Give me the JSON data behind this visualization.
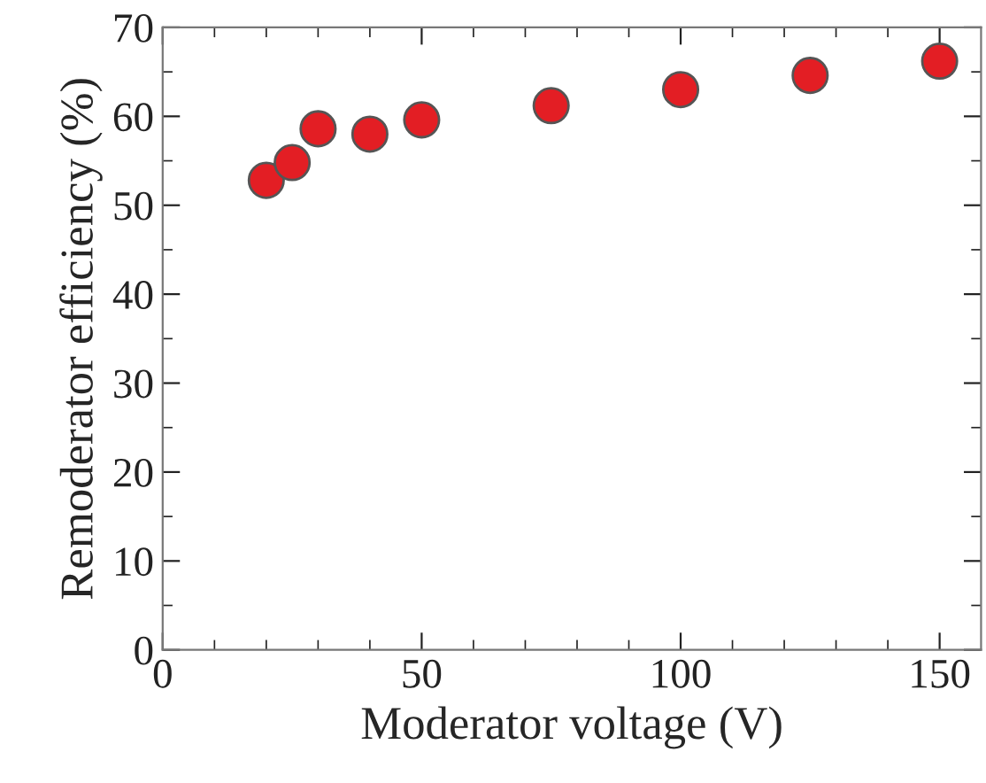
{
  "chart_data": {
    "type": "scatter",
    "xlabel": "Moderator voltage (V)",
    "ylabel": "Remoderator efficiency (%)",
    "x": [
      20,
      25,
      30,
      40,
      50,
      75,
      100,
      125,
      150
    ],
    "series": [
      {
        "color": "#e31e24",
        "values": [
          52.8,
          54.8,
          58.6,
          58.0,
          59.6,
          61.2,
          63.0,
          64.6,
          66.2
        ]
      }
    ],
    "xlim": [
      0,
      158
    ],
    "xticks": [
      0,
      50,
      100,
      150
    ],
    "ylim": [
      0,
      70
    ],
    "yticks": [
      0,
      10,
      20,
      30,
      40,
      50,
      60,
      70
    ],
    "marker": "circle",
    "grid": false,
    "legend": false
  }
}
